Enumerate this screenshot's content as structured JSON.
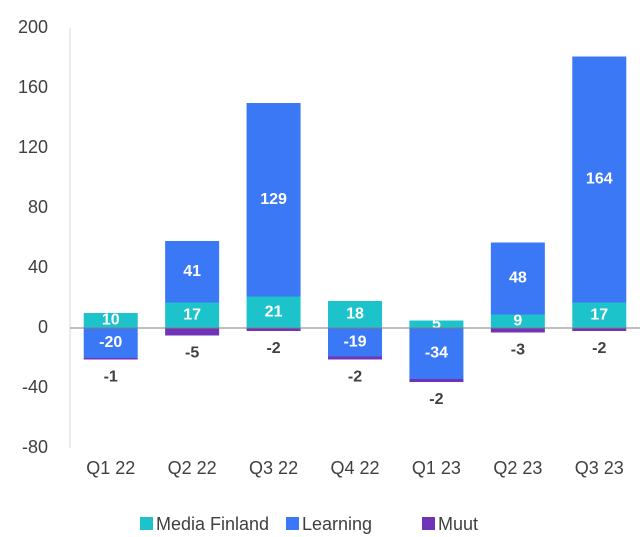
{
  "chart_data": {
    "type": "bar",
    "stacked": true,
    "categories": [
      "Q1 22",
      "Q2 22",
      "Q3 22",
      "Q4 22",
      "Q1 23",
      "Q2 23",
      "Q3 23"
    ],
    "series": [
      {
        "name": "Media Finland",
        "color": "#1cc3cb",
        "values": [
          10,
          17,
          21,
          18,
          5,
          9,
          17
        ]
      },
      {
        "name": "Learning",
        "color": "#3b78f5",
        "values": [
          -20,
          41,
          129,
          -19,
          -34,
          48,
          164
        ]
      },
      {
        "name": "Muut",
        "color": "#6f34b8",
        "values": [
          -1,
          -5,
          -2,
          -2,
          -2,
          -3,
          -2
        ]
      }
    ],
    "ylim": [
      -80,
      200
    ],
    "yticks": [
      -80,
      -40,
      0,
      40,
      80,
      120,
      160,
      200
    ],
    "legend": "bottom"
  }
}
